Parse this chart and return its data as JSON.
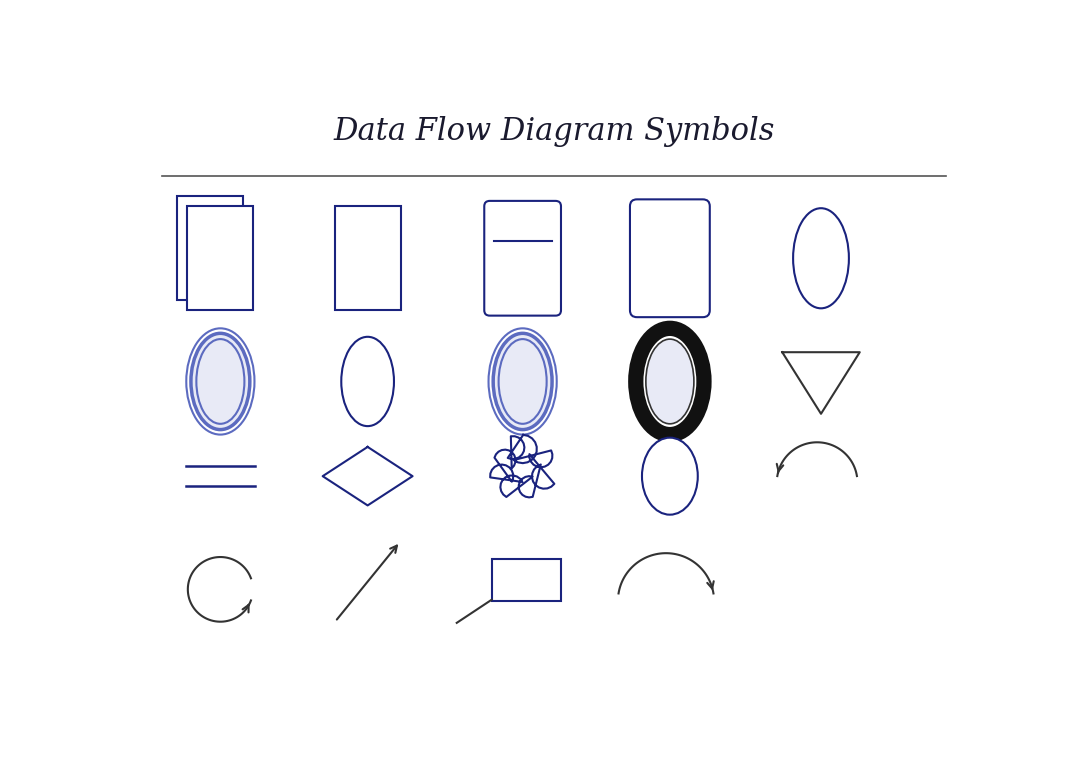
{
  "title": "Data Flow Diagram Symbols",
  "title_color": "#1a1a2e",
  "title_fontsize": 22,
  "bg_color": "#ffffff",
  "shape_color": "#1a237e",
  "dark_color": "#333333",
  "blue_color": "#5c6bc0",
  "blue_fill": "#e8eaf6",
  "figsize": [
    10.81,
    7.79
  ],
  "dpi": 100
}
